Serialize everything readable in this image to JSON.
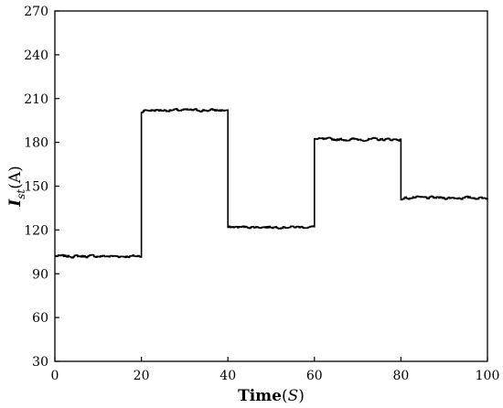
{
  "chart_data": {
    "type": "line",
    "xlabel": {
      "bold": "Time",
      "open": "(",
      "italic": "S",
      "close": ")"
    },
    "ylabel": {
      "main": "I",
      "sub": "st",
      "unit": "(A)"
    },
    "xlim": [
      0,
      100
    ],
    "ylim": [
      30,
      270
    ],
    "xticks": [
      0,
      20,
      40,
      60,
      80,
      100
    ],
    "yticks": [
      30,
      60,
      90,
      120,
      150,
      180,
      210,
      240,
      270
    ],
    "grid": false,
    "legend": "none",
    "series": [
      {
        "color": "#000000",
        "segments": [
          {
            "x_start": 0,
            "x_end": 20,
            "mean": 102,
            "noise": 1.6
          },
          {
            "x_start": 20,
            "x_end": 40,
            "mean": 202,
            "noise": 1.6
          },
          {
            "x_start": 40,
            "x_end": 60,
            "mean": 122,
            "noise": 1.4
          },
          {
            "x_start": 60,
            "x_end": 80,
            "mean": 182,
            "noise": 1.6
          },
          {
            "x_start": 80,
            "x_end": 100,
            "mean": 142,
            "noise": 1.6
          }
        ]
      }
    ]
  }
}
